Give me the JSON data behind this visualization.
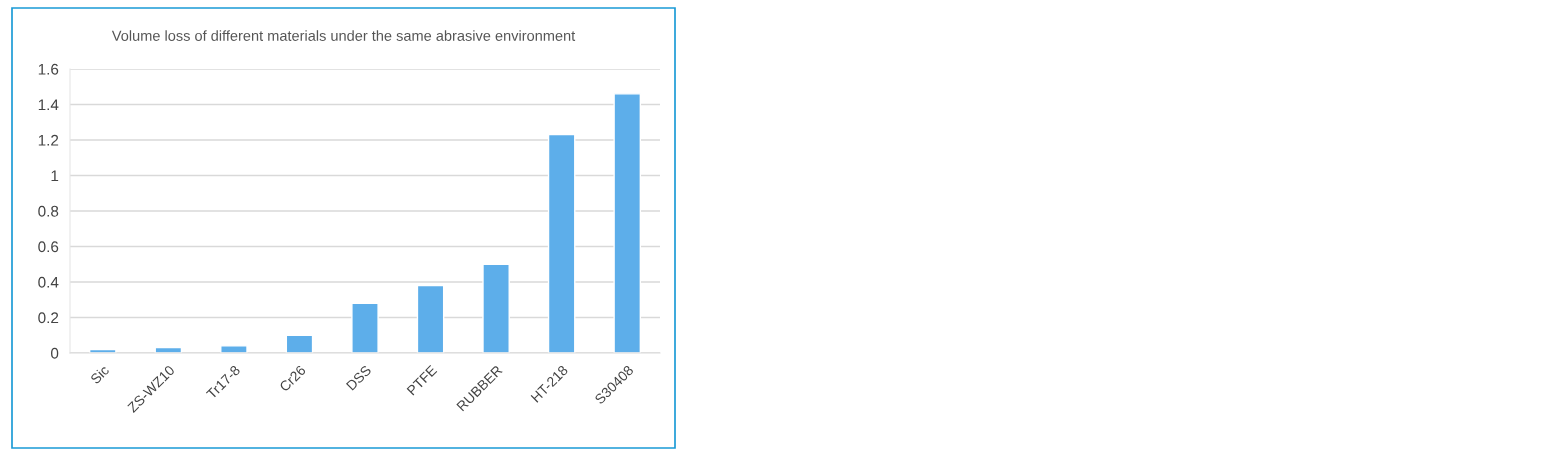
{
  "chart_data": {
    "type": "bar",
    "title": "Volume loss of different materials under the same abrasive environment",
    "categories": [
      "Sic",
      "ZS-WZ10",
      "Tr17-8",
      "Cr26",
      "DSS",
      "PTFE",
      "RUBBER",
      "HT-218",
      "S30408"
    ],
    "values": [
      0.02,
      0.03,
      0.04,
      0.1,
      0.28,
      0.38,
      0.5,
      1.23,
      1.46
    ],
    "color": "#5daeea",
    "ylim": [
      0,
      1.6
    ],
    "yticks": [
      0,
      0.2,
      0.4,
      0.6,
      0.8,
      1,
      1.2,
      1.4,
      1.6
    ],
    "grid": "y"
  }
}
